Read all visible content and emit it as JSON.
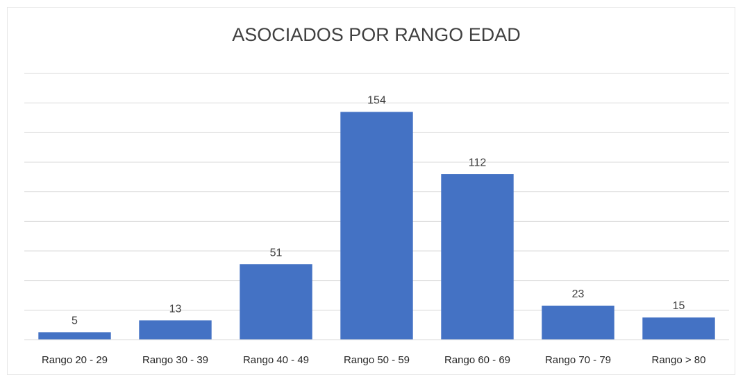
{
  "chart_data": {
    "type": "bar",
    "title": "ASOCIADOS POR RANGO EDAD",
    "categories": [
      "Rango 20 - 29",
      "Rango 30 - 39",
      "Rango 40 - 49",
      "Rango 50 - 59",
      "Rango 60 - 69",
      "Rango 70 - 79",
      "Rango > 80"
    ],
    "values": [
      5,
      13,
      51,
      154,
      112,
      23,
      15
    ],
    "color": "#4472c4",
    "ylim": [
      0,
      180
    ],
    "yticks": [
      0,
      20,
      40,
      60,
      80,
      100,
      120,
      140,
      160,
      180
    ],
    "grid": true
  }
}
